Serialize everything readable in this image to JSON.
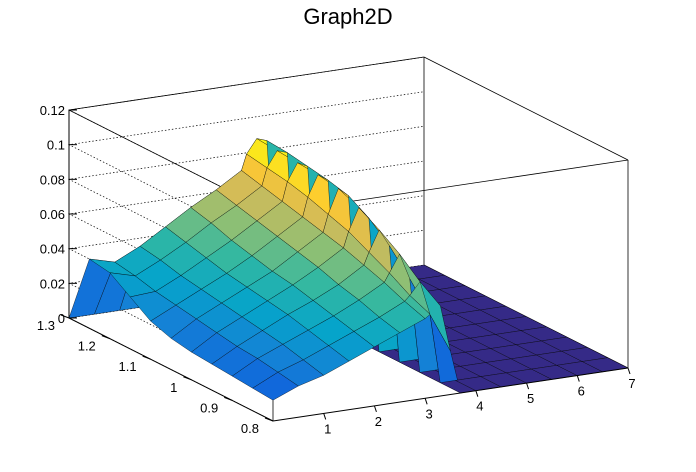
{
  "chart_data": {
    "type": "surface",
    "title": "Graph2D",
    "xlabel": "",
    "ylabel": "",
    "zlabel": "",
    "x_range": [
      0,
      7
    ],
    "y_range": [
      0.8,
      1.3
    ],
    "z_range": [
      0,
      0.12
    ],
    "x_ticks": [
      "1",
      "2",
      "3",
      "4",
      "5",
      "6",
      "7"
    ],
    "y_ticks": [
      "1.3",
      "1.2",
      "1.1",
      "1",
      "0.9",
      "0.8"
    ],
    "z_ticks": [
      "0",
      "0.02",
      "0.04",
      "0.06",
      "0.08",
      "0.1",
      "0.12"
    ],
    "grid": true,
    "colormap": [
      "#352a87",
      "#0f5cdd",
      "#1481d6",
      "#06a4ca",
      "#2eb7a4",
      "#87bf77",
      "#d1bb59",
      "#fec832",
      "#f9fb0e"
    ],
    "x_grid": [
      0,
      0.5,
      1,
      1.5,
      2,
      2.5,
      3,
      3.1,
      3.3,
      3.5,
      3.7,
      4,
      4.5,
      5,
      5.5,
      6,
      6.5,
      7
    ],
    "y_grid": [
      0.8,
      0.85,
      0.9,
      0.95,
      1.0,
      1.05,
      1.1,
      1.15,
      1.2,
      1.25,
      1.3
    ],
    "z": [
      [
        0.012,
        0.018,
        0.022,
        0.028,
        0.034,
        0.04,
        0.046,
        0.048,
        0.052,
        0.025,
        0.0,
        0,
        0,
        0,
        0,
        0,
        0,
        0
      ],
      [
        0.013,
        0.02,
        0.025,
        0.031,
        0.037,
        0.043,
        0.05,
        0.053,
        0.06,
        0.04,
        0.0,
        0,
        0,
        0,
        0,
        0,
        0,
        0
      ],
      [
        0.014,
        0.022,
        0.028,
        0.034,
        0.04,
        0.047,
        0.055,
        0.06,
        0.07,
        0.055,
        0.0,
        0,
        0,
        0,
        0,
        0,
        0,
        0
      ],
      [
        0.015,
        0.023,
        0.03,
        0.037,
        0.043,
        0.05,
        0.059,
        0.066,
        0.078,
        0.068,
        0.0,
        0,
        0,
        0,
        0,
        0,
        0,
        0
      ],
      [
        0.016,
        0.025,
        0.032,
        0.039,
        0.046,
        0.054,
        0.063,
        0.072,
        0.085,
        0.078,
        0.0,
        0,
        0,
        0,
        0,
        0,
        0,
        0
      ],
      [
        0.018,
        0.027,
        0.034,
        0.041,
        0.048,
        0.057,
        0.066,
        0.076,
        0.09,
        0.085,
        0.0,
        0,
        0,
        0,
        0,
        0,
        0,
        0
      ],
      [
        0.022,
        0.029,
        0.036,
        0.043,
        0.051,
        0.06,
        0.069,
        0.08,
        0.092,
        0.088,
        0.0,
        0,
        0,
        0,
        0,
        0,
        0,
        0
      ],
      [
        0.03,
        0.031,
        0.038,
        0.046,
        0.054,
        0.063,
        0.072,
        0.083,
        0.093,
        0.09,
        0.0,
        0,
        0,
        0,
        0,
        0,
        0,
        0
      ],
      [
        0.038,
        0.034,
        0.041,
        0.049,
        0.058,
        0.066,
        0.075,
        0.085,
        0.094,
        0.092,
        0.0,
        0,
        0,
        0,
        0,
        0,
        0,
        0
      ],
      [
        0.04,
        0.036,
        0.043,
        0.052,
        0.061,
        0.069,
        0.078,
        0.087,
        0.095,
        0.093,
        0.0,
        0,
        0,
        0,
        0,
        0,
        0,
        0
      ],
      [
        0.0,
        0.0,
        0.0,
        0.0,
        0.0,
        0.0,
        0.0,
        0.0,
        0.0,
        0.0,
        0.0,
        0,
        0,
        0,
        0,
        0,
        0,
        0
      ]
    ]
  }
}
